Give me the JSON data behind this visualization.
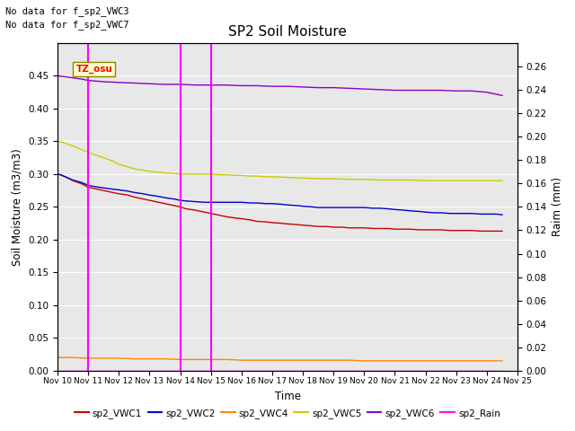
{
  "title": "SP2 Soil Moisture",
  "xlabel": "Time",
  "ylabel_left": "Soil Moisture (m3/m3)",
  "ylabel_right": "Raim (mm)",
  "no_data_text": [
    "No data for f_sp2_VWC3",
    "No data for f_sp2_VWC7"
  ],
  "tz_label": "TZ_osu",
  "x_ticks": [
    10,
    11,
    12,
    13,
    14,
    15,
    16,
    17,
    18,
    19,
    20,
    21,
    22,
    23,
    24,
    25
  ],
  "x_tick_labels": [
    "Nov 10",
    "Nov 11",
    "Nov 12",
    "Nov 13",
    "Nov 14",
    "Nov 15",
    "Nov 16",
    "Nov 17",
    "Nov 18",
    "Nov 19",
    "Nov 20",
    "Nov 21",
    "Nov 22",
    "Nov 23",
    "Nov 24",
    "Nov 25"
  ],
  "ylim_left": [
    0.0,
    0.5
  ],
  "ylim_right": [
    0.0,
    0.28
  ],
  "yticks_left": [
    0.0,
    0.05,
    0.1,
    0.15,
    0.2,
    0.25,
    0.3,
    0.35,
    0.4,
    0.45
  ],
  "yticks_right": [
    0.0,
    0.02,
    0.04,
    0.06,
    0.08,
    0.1,
    0.12,
    0.14,
    0.16,
    0.18,
    0.2,
    0.22,
    0.24,
    0.26
  ],
  "background_color": "#e8e8e8",
  "magenta_lines": [
    11,
    14,
    15
  ],
  "legend_entries": [
    {
      "label": "sp2_VWC1",
      "color": "#cc0000"
    },
    {
      "label": "sp2_VWC2",
      "color": "#0000cc"
    },
    {
      "label": "sp2_VWC4",
      "color": "#ff8800"
    },
    {
      "label": "sp2_VWC5",
      "color": "#cccc00"
    },
    {
      "label": "sp2_VWC6",
      "color": "#8800cc"
    },
    {
      "label": "sp2_Rain",
      "color": "#ff00ff"
    }
  ],
  "VWC1": {
    "color": "#cc0000",
    "x": [
      10.0,
      10.1,
      10.3,
      10.5,
      10.8,
      11.0,
      11.2,
      11.5,
      11.8,
      12.0,
      12.3,
      12.5,
      12.8,
      13.0,
      13.3,
      13.5,
      13.8,
      14.0,
      14.2,
      14.5,
      14.8,
      15.0,
      15.3,
      15.5,
      15.8,
      16.0,
      16.3,
      16.5,
      16.8,
      17.0,
      17.3,
      17.5,
      17.8,
      18.0,
      18.3,
      18.5,
      18.8,
      19.0,
      19.3,
      19.5,
      19.8,
      20.0,
      20.3,
      20.5,
      20.8,
      21.0,
      21.3,
      21.5,
      21.8,
      22.0,
      22.3,
      22.5,
      22.8,
      23.0,
      23.3,
      23.5,
      23.8,
      24.0,
      24.3,
      24.5
    ],
    "y": [
      0.3,
      0.299,
      0.295,
      0.29,
      0.285,
      0.28,
      0.278,
      0.275,
      0.272,
      0.27,
      0.268,
      0.265,
      0.262,
      0.26,
      0.257,
      0.255,
      0.252,
      0.25,
      0.247,
      0.245,
      0.242,
      0.24,
      0.237,
      0.235,
      0.233,
      0.232,
      0.23,
      0.228,
      0.227,
      0.226,
      0.225,
      0.224,
      0.223,
      0.222,
      0.221,
      0.22,
      0.22,
      0.219,
      0.219,
      0.218,
      0.218,
      0.218,
      0.217,
      0.217,
      0.217,
      0.216,
      0.216,
      0.216,
      0.215,
      0.215,
      0.215,
      0.215,
      0.214,
      0.214,
      0.214,
      0.214,
      0.213,
      0.213,
      0.213,
      0.213
    ]
  },
  "VWC2": {
    "color": "#0000cc",
    "x": [
      10.0,
      10.1,
      10.3,
      10.5,
      10.8,
      11.0,
      11.2,
      11.5,
      11.8,
      12.0,
      12.3,
      12.5,
      12.8,
      13.0,
      13.3,
      13.5,
      13.8,
      14.0,
      14.2,
      14.5,
      14.8,
      15.0,
      15.3,
      15.5,
      15.8,
      16.0,
      16.3,
      16.5,
      16.8,
      17.0,
      17.3,
      17.5,
      17.8,
      18.0,
      18.3,
      18.5,
      18.8,
      19.0,
      19.3,
      19.5,
      19.8,
      20.0,
      20.3,
      20.5,
      20.8,
      21.0,
      21.3,
      21.5,
      21.8,
      22.0,
      22.3,
      22.5,
      22.8,
      23.0,
      23.3,
      23.5,
      23.8,
      24.0,
      24.3,
      24.5
    ],
    "y": [
      0.3,
      0.299,
      0.295,
      0.291,
      0.287,
      0.283,
      0.281,
      0.279,
      0.277,
      0.276,
      0.274,
      0.272,
      0.27,
      0.268,
      0.266,
      0.264,
      0.262,
      0.26,
      0.259,
      0.258,
      0.257,
      0.257,
      0.257,
      0.257,
      0.257,
      0.257,
      0.256,
      0.256,
      0.255,
      0.255,
      0.254,
      0.253,
      0.252,
      0.251,
      0.25,
      0.249,
      0.249,
      0.249,
      0.249,
      0.249,
      0.249,
      0.249,
      0.248,
      0.248,
      0.247,
      0.246,
      0.245,
      0.244,
      0.243,
      0.242,
      0.241,
      0.241,
      0.24,
      0.24,
      0.24,
      0.24,
      0.239,
      0.239,
      0.239,
      0.238
    ]
  },
  "VWC4": {
    "color": "#ff8800",
    "x": [
      10.0,
      10.5,
      11.0,
      11.5,
      12.0,
      12.5,
      13.0,
      13.5,
      14.0,
      14.5,
      15.0,
      15.5,
      16.0,
      16.5,
      17.0,
      17.5,
      18.0,
      18.5,
      19.0,
      19.5,
      20.0,
      20.5,
      21.0,
      21.5,
      22.0,
      22.5,
      23.0,
      23.5,
      24.0,
      24.5
    ],
    "y": [
      0.02,
      0.02,
      0.019,
      0.019,
      0.019,
      0.018,
      0.018,
      0.018,
      0.017,
      0.017,
      0.017,
      0.017,
      0.016,
      0.016,
      0.016,
      0.016,
      0.016,
      0.016,
      0.016,
      0.016,
      0.015,
      0.015,
      0.015,
      0.015,
      0.015,
      0.015,
      0.015,
      0.015,
      0.015,
      0.015
    ]
  },
  "VWC5": {
    "color": "#cccc00",
    "x": [
      10.0,
      10.2,
      10.5,
      10.8,
      11.0,
      11.2,
      11.5,
      11.8,
      12.0,
      12.3,
      12.5,
      12.8,
      13.0,
      13.3,
      13.5,
      13.8,
      14.0,
      14.3,
      14.5,
      14.8,
      15.0,
      15.3,
      15.5,
      15.8,
      16.0,
      16.3,
      16.5,
      16.8,
      17.0,
      17.5,
      18.0,
      18.5,
      19.0,
      19.5,
      20.0,
      20.5,
      21.0,
      21.5,
      22.0,
      22.5,
      23.0,
      23.5,
      24.0,
      24.5
    ],
    "y": [
      0.35,
      0.348,
      0.343,
      0.337,
      0.333,
      0.33,
      0.325,
      0.32,
      0.315,
      0.311,
      0.308,
      0.306,
      0.304,
      0.303,
      0.302,
      0.301,
      0.3,
      0.3,
      0.3,
      0.3,
      0.3,
      0.299,
      0.299,
      0.298,
      0.298,
      0.297,
      0.297,
      0.296,
      0.296,
      0.295,
      0.294,
      0.293,
      0.293,
      0.292,
      0.292,
      0.291,
      0.291,
      0.291,
      0.29,
      0.29,
      0.29,
      0.29,
      0.29,
      0.29
    ]
  },
  "VWC6": {
    "color": "#8800cc",
    "x": [
      10.0,
      10.2,
      10.5,
      10.8,
      11.0,
      11.5,
      12.0,
      12.5,
      13.0,
      13.5,
      14.0,
      14.5,
      15.0,
      15.5,
      16.0,
      16.5,
      17.0,
      17.5,
      18.0,
      18.5,
      19.0,
      19.5,
      20.0,
      20.5,
      21.0,
      21.5,
      22.0,
      22.5,
      23.0,
      23.5,
      24.0,
      24.5
    ],
    "y": [
      0.45,
      0.449,
      0.447,
      0.445,
      0.443,
      0.441,
      0.44,
      0.439,
      0.438,
      0.437,
      0.437,
      0.436,
      0.436,
      0.436,
      0.435,
      0.435,
      0.434,
      0.434,
      0.433,
      0.432,
      0.432,
      0.431,
      0.43,
      0.429,
      0.428,
      0.428,
      0.428,
      0.428,
      0.427,
      0.427,
      0.425,
      0.42
    ]
  },
  "Rain": {
    "color": "#ff00ff",
    "x": [
      10.0,
      24.5
    ],
    "y": [
      0.0,
      0.0
    ]
  }
}
